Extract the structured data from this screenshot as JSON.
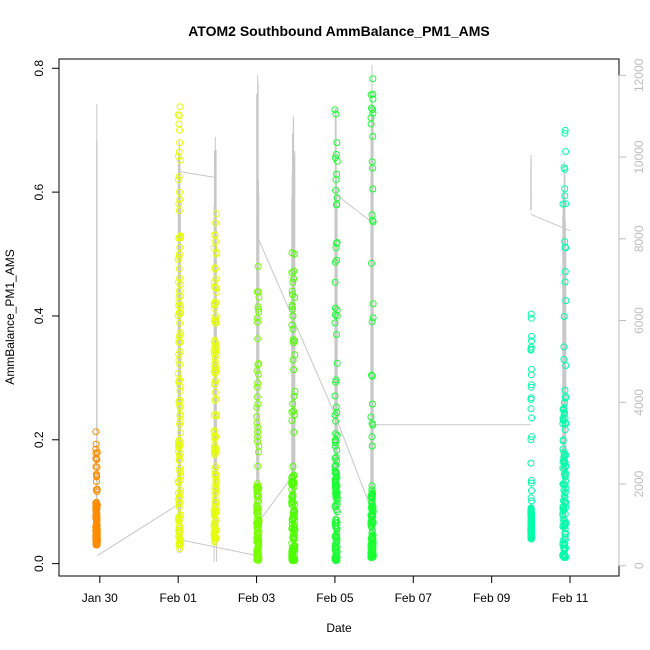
{
  "chart_data": {
    "type": "scatter",
    "title": "ATOM2 Southbound AmmBalance_PM1_AMS",
    "xlabel": "Date",
    "ylabel": "AmmBalance_PM1_AMS",
    "x_axis": {
      "type": "date",
      "range": [
        "2023-01-28T23:00",
        "2023-02-12T06:00"
      ],
      "tick_labels": [
        "Jan 30",
        "Feb 01",
        "Feb 03",
        "Feb 05",
        "Feb 07",
        "Feb 09",
        "Feb 11"
      ],
      "tick_dates": [
        "2023-01-30",
        "2023-02-01",
        "2023-02-03",
        "2023-02-05",
        "2023-02-07",
        "2023-02-09",
        "2023-02-11"
      ]
    },
    "y_axis": {
      "range": [
        -0.02,
        0.815
      ],
      "ticks": [
        0.0,
        0.2,
        0.4,
        0.6,
        0.8
      ]
    },
    "y2_axis": {
      "range": [
        -250,
        12400
      ],
      "ticks": [
        0,
        2000,
        4000,
        6000,
        8000,
        10000,
        12000
      ],
      "color": "#bdbdbd"
    },
    "grid": false,
    "series": [
      {
        "color": "#ff8c00",
        "date": "2023-01-29",
        "hours": [
          21.5,
          22.5
        ],
        "y_min": 0.03,
        "y_max": 0.21,
        "dense_min": 0.03,
        "dense_max": 0.1,
        "outliers": [
          0.213,
          0.185,
          0.18,
          0.17,
          0.14,
          0.12
        ]
      },
      {
        "color": "#e6ff00",
        "date": "2023-02-01",
        "hours": [
          0,
          1.5
        ],
        "y_min": 0.02,
        "y_max": 0.74,
        "dense_min": 0.03,
        "dense_max": 0.56,
        "outliers": [
          0.738,
          0.725,
          0.71,
          0.7,
          0.68,
          0.665,
          0.62,
          0.6,
          0.57
        ]
      },
      {
        "color": "#e6ff00",
        "date": "2023-02-01",
        "hours": [
          22,
          23.5
        ],
        "y_min": 0.03,
        "y_max": 0.565,
        "dense_min": 0.04,
        "dense_max": 0.5,
        "outliers": [
          0.565,
          0.55,
          0.53,
          0.51,
          0.05,
          0.035
        ]
      },
      {
        "color": "#78ff00",
        "date": "2023-02-03",
        "hours": [
          0,
          1.5
        ],
        "y_min": 0.005,
        "y_max": 0.48,
        "dense_min": 0.005,
        "dense_max": 0.13,
        "outliers": [
          0.48,
          0.43,
          0.415,
          0.39,
          0.285,
          0.22,
          0.205,
          0.19,
          0.01
        ]
      },
      {
        "color": "#4dff00",
        "date": "2023-02-03",
        "hours": [
          21.5,
          23.5
        ],
        "y_min": 0.005,
        "y_max": 0.5,
        "dense_min": 0.005,
        "dense_max": 0.15,
        "outliers": [
          0.502,
          0.5,
          0.47,
          0.44,
          0.43,
          0.415,
          0.4,
          0.36,
          0.27,
          0.245,
          0.24
        ]
      },
      {
        "color": "#1aff33",
        "date": "2023-02-05",
        "hours": [
          0,
          1.5
        ],
        "y_min": -0.005,
        "y_max": 0.73,
        "dense_min": 0.005,
        "dense_max": 0.2,
        "outliers": [
          0.733,
          0.68,
          0.65,
          0.62,
          0.58,
          0.49,
          0.4,
          0.37,
          0.24,
          0.23,
          0.21
        ]
      },
      {
        "color": "#1aff33",
        "date": "2023-02-05",
        "hours": [
          22,
          23.5
        ],
        "y_min": 0.01,
        "y_max": 0.78,
        "dense_min": 0.01,
        "dense_max": 0.12,
        "outliers": [
          0.783,
          0.72,
          0.71,
          0.69,
          0.605,
          0.19
        ]
      },
      {
        "color": "#00ffaa",
        "date": "2023-02-10",
        "hours": [
          0,
          0.5
        ],
        "y_min": 0.04,
        "y_max": 0.4,
        "dense_min": 0.04,
        "dense_max": 0.09,
        "outliers": [
          0.403,
          0.305,
          0.285,
          0.25,
          0.2,
          0.13
        ]
      },
      {
        "color": "#00ffaa",
        "date": "2023-02-10",
        "hours": [
          19.5,
          21.5
        ],
        "y_min": 0.01,
        "y_max": 0.7,
        "dense_min": 0.01,
        "dense_max": 0.25,
        "outliers": [
          0.695,
          0.52,
          0.51,
          0.455,
          0.35,
          0.32,
          0.28,
          0.27,
          0.26
        ]
      }
    ],
    "line_series": {
      "color": "#c8c8c8",
      "axis": "y2",
      "spikes": [
        {
          "date": "2023-01-29",
          "hours": [
            22,
            22.3
          ],
          "max": 11300,
          "base": 720
        },
        {
          "date": "2023-02-01",
          "hours": [
            0,
            1.5
          ],
          "max": 10400,
          "base": 300
        },
        {
          "date": "2023-02-01",
          "hours": [
            22,
            23.5
          ],
          "max": 10500,
          "base": 100
        },
        {
          "date": "2023-02-03",
          "hours": [
            0,
            1.5
          ],
          "max": 12000,
          "base": 150
        },
        {
          "date": "2023-02-03",
          "hours": [
            21.5,
            23.5
          ],
          "max": 11000,
          "base": 100
        },
        {
          "date": "2023-02-05",
          "hours": [
            0,
            1.5
          ],
          "max": 11200,
          "base": 100
        },
        {
          "date": "2023-02-05",
          "hours": [
            22,
            23.5
          ],
          "max": 12250,
          "base": 100
        },
        {
          "date": "2023-02-10",
          "hours": [
            0,
            0.3
          ],
          "max": 10050,
          "base": 8700
        },
        {
          "date": "2023-02-10",
          "hours": [
            19.5,
            21.5
          ],
          "max": 9900,
          "base": 200
        }
      ],
      "connectors": [
        {
          "from": [
            "2023-01-29T22:30",
            250
          ],
          "to": [
            "2023-02-01T00:00",
            1500
          ]
        },
        {
          "from": [
            "2023-02-01T00:00",
            9650
          ],
          "to": [
            "2023-02-01T23:00",
            9500
          ]
        },
        {
          "from": [
            "2023-02-01T00:00",
            650
          ],
          "to": [
            "2023-02-03T00:00",
            250
          ]
        },
        {
          "from": [
            "2023-02-03T00:00",
            8100
          ],
          "to": [
            "2023-02-05T00:00",
            3700
          ]
        },
        {
          "from": [
            "2023-02-03T00:00",
            1000
          ],
          "to": [
            "2023-02-03T22:00",
            2200
          ]
        },
        {
          "from": [
            "2023-02-05T00:00",
            9100
          ],
          "to": [
            "2023-02-05T23:00",
            8400
          ]
        },
        {
          "from": [
            "2023-02-05T00:00",
            3700
          ],
          "to": [
            "2023-02-06T00:00",
            1200
          ]
        },
        {
          "from": [
            "2023-02-06T00:00",
            3450
          ],
          "to": [
            "2023-02-10T00:00",
            3450
          ]
        },
        {
          "from": [
            "2023-02-10T00:00",
            8600
          ],
          "to": [
            "2023-02-11T00:00",
            8200
          ]
        }
      ]
    }
  }
}
